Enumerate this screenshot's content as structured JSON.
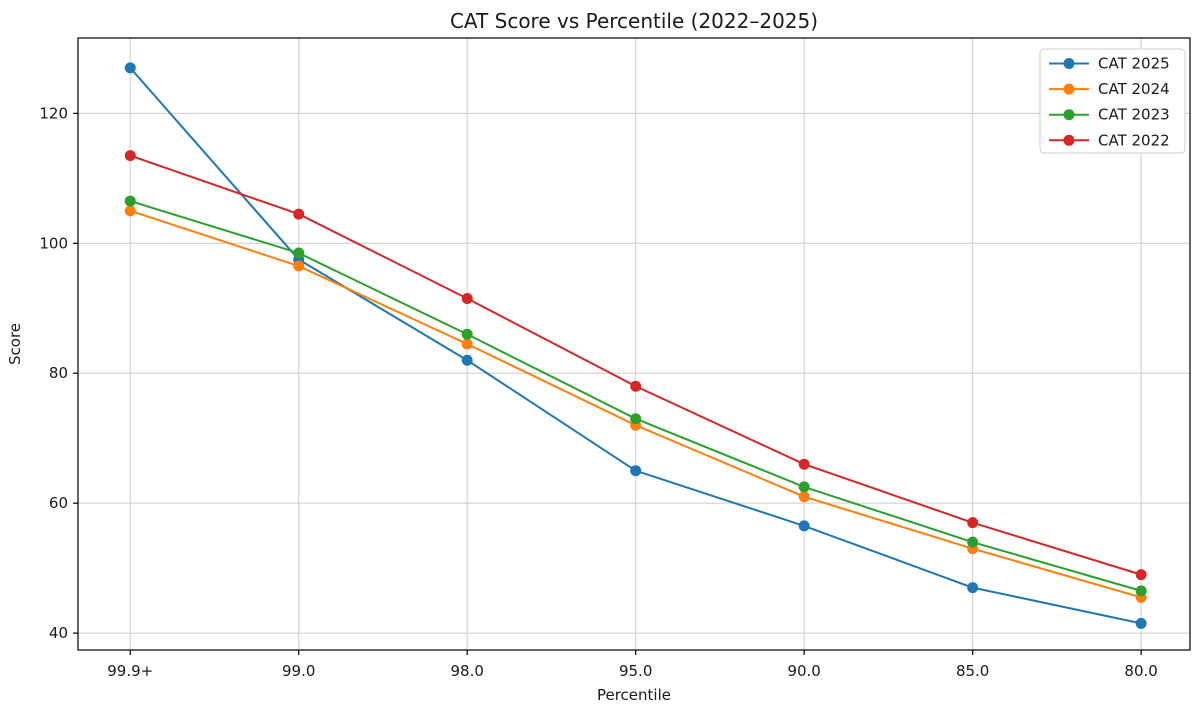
{
  "figure": {
    "background": "#ffffff",
    "text_color": "#1a1a1a",
    "grid_color": "#cccccc",
    "spine_color": "#000000",
    "legend_border_color": "#cccccc",
    "legend_background": "#ffffff"
  },
  "chart_data": {
    "type": "line",
    "title": "CAT Score vs Percentile (2022–2025)",
    "xlabel": "Percentile",
    "ylabel": "Score",
    "categories": [
      "99.9+",
      "99.0",
      "98.0",
      "95.0",
      "90.0",
      "85.0",
      "80.0"
    ],
    "series": [
      {
        "name": "CAT 2025",
        "color": "#1f77b4",
        "values": [
          127.0,
          97.5,
          82.0,
          65.0,
          56.5,
          47.0,
          41.5
        ]
      },
      {
        "name": "CAT 2024",
        "color": "#ff7f0e",
        "values": [
          105.0,
          96.5,
          84.5,
          72.0,
          61.0,
          53.0,
          45.5
        ]
      },
      {
        "name": "CAT 2023",
        "color": "#2ca02c",
        "values": [
          106.5,
          98.5,
          86.0,
          73.0,
          62.5,
          54.0,
          46.5
        ]
      },
      {
        "name": "CAT 2022",
        "color": "#d62728",
        "values": [
          113.5,
          104.5,
          91.5,
          78.0,
          66.0,
          57.0,
          49.0
        ]
      }
    ],
    "yticks": [
      40,
      60,
      80,
      100,
      120
    ],
    "ylim": [
      37.4,
      131.6
    ],
    "xlim_index": [
      -0.31,
      6.29
    ],
    "grid": true,
    "legend_position": "upper right",
    "marker": "circle",
    "line_width": 2,
    "marker_radius": 5.5
  }
}
